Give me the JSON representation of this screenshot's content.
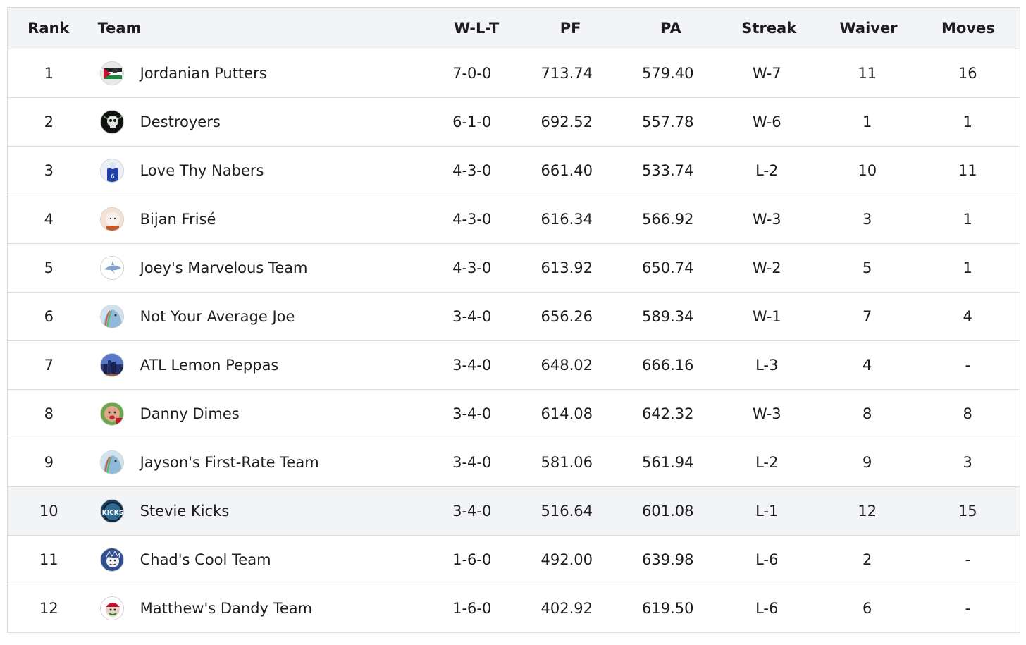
{
  "columns": {
    "rank": "Rank",
    "team": "Team",
    "wlt": "W-L-T",
    "pf": "PF",
    "pa": "PA",
    "streak": "Streak",
    "waiver": "Waiver",
    "moves": "Moves"
  },
  "highlight_row": 10,
  "rows": [
    {
      "rank": "1",
      "team": "Jordanian Putters",
      "wlt": "7-0-0",
      "pf": "713.74",
      "pa": "579.40",
      "streak": "W-7",
      "waiver": "11",
      "moves": "16",
      "avatar_icon": "team-logo-jordan-flag-icon"
    },
    {
      "rank": "2",
      "team": "Destroyers",
      "wlt": "6-1-0",
      "pf": "692.52",
      "pa": "557.78",
      "streak": "W-6",
      "waiver": "1",
      "moves": "1",
      "avatar_icon": "team-logo-skull-icon"
    },
    {
      "rank": "3",
      "team": "Love Thy Nabers",
      "wlt": "4-3-0",
      "pf": "661.40",
      "pa": "533.74",
      "streak": "L-2",
      "waiver": "10",
      "moves": "11",
      "avatar_icon": "team-logo-player-icon"
    },
    {
      "rank": "4",
      "team": "Bijan Frisé",
      "wlt": "4-3-0",
      "pf": "616.34",
      "pa": "566.92",
      "streak": "W-3",
      "waiver": "3",
      "moves": "1",
      "avatar_icon": "team-logo-dog-icon"
    },
    {
      "rank": "5",
      "team": "Joey's Marvelous Team",
      "wlt": "4-3-0",
      "pf": "613.92",
      "pa": "650.74",
      "streak": "W-2",
      "waiver": "5",
      "moves": "1",
      "avatar_icon": "team-logo-shark-icon"
    },
    {
      "rank": "6",
      "team": "Not Your Average Joe",
      "wlt": "3-4-0",
      "pf": "656.26",
      "pa": "589.34",
      "streak": "W-1",
      "waiver": "7",
      "moves": "4",
      "avatar_icon": "team-logo-default-icon"
    },
    {
      "rank": "7",
      "team": "ATL Lemon Peppas",
      "wlt": "3-4-0",
      "pf": "648.02",
      "pa": "666.16",
      "streak": "L-3",
      "waiver": "4",
      "moves": "-",
      "avatar_icon": "team-logo-skyline-icon"
    },
    {
      "rank": "8",
      "team": "Danny Dimes",
      "wlt": "3-4-0",
      "pf": "614.08",
      "pa": "642.32",
      "streak": "W-3",
      "waiver": "8",
      "moves": "8",
      "avatar_icon": "team-logo-face-icon"
    },
    {
      "rank": "9",
      "team": "Jayson's First-Rate Team",
      "wlt": "3-4-0",
      "pf": "581.06",
      "pa": "561.94",
      "streak": "L-2",
      "waiver": "9",
      "moves": "3",
      "avatar_icon": "team-logo-default-icon"
    },
    {
      "rank": "10",
      "team": "Stevie Kicks",
      "wlt": "3-4-0",
      "pf": "516.64",
      "pa": "601.08",
      "streak": "L-1",
      "waiver": "12",
      "moves": "15",
      "avatar_icon": "team-logo-kicks-icon"
    },
    {
      "rank": "11",
      "team": "Chad's Cool Team",
      "wlt": "1-6-0",
      "pf": "492.00",
      "pa": "639.98",
      "streak": "L-6",
      "waiver": "2",
      "moves": "-",
      "avatar_icon": "team-logo-cartoon-icon"
    },
    {
      "rank": "12",
      "team": "Matthew's Dandy Team",
      "wlt": "1-6-0",
      "pf": "402.92",
      "pa": "619.50",
      "streak": "L-6",
      "waiver": "6",
      "moves": "-",
      "avatar_icon": "team-logo-mascot-icon"
    }
  ]
}
